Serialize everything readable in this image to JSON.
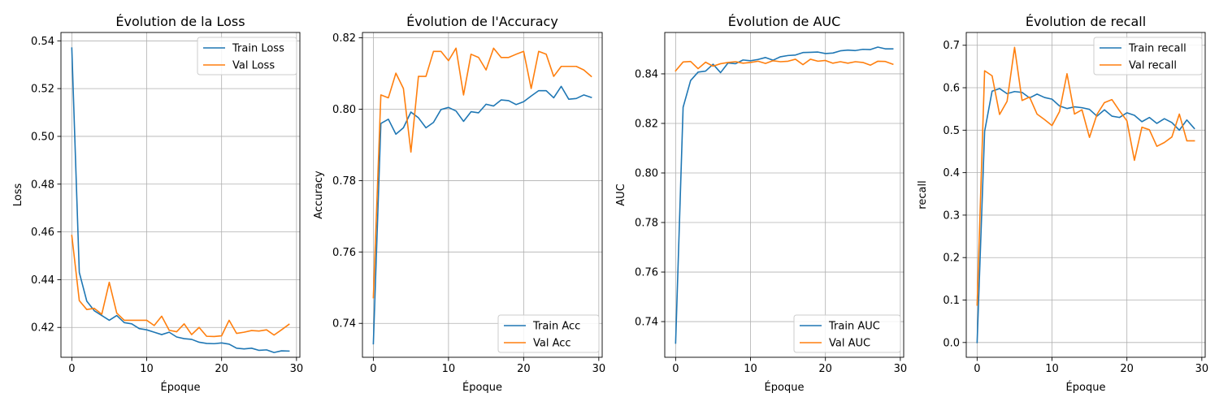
{
  "colors": {
    "train": "#1f77b4",
    "val": "#ff7f0e",
    "grid": "#b0b0b0"
  },
  "chart_data": [
    {
      "type": "line",
      "title": "Évolution de la Loss",
      "xlabel": "Époque",
      "ylabel": "Loss",
      "xlim": [
        -1.45,
        30.45
      ],
      "ylim": [
        0.4075,
        0.5435
      ],
      "xticks": [
        0,
        10,
        20,
        30
      ],
      "yticks": [
        0.42,
        0.44,
        0.46,
        0.48,
        0.5,
        0.52,
        0.54
      ],
      "ytick_labels": [
        "0.42",
        "0.44",
        "0.46",
        "0.48",
        "0.50",
        "0.52",
        "0.54"
      ],
      "grid": true,
      "legend": "upper right",
      "x": [
        0,
        1,
        2,
        3,
        4,
        5,
        6,
        7,
        8,
        9,
        10,
        11,
        12,
        13,
        14,
        15,
        16,
        17,
        18,
        19,
        20,
        21,
        22,
        23,
        24,
        25,
        26,
        27,
        28,
        29
      ],
      "series": [
        {
          "name": "Train Loss",
          "color": "train",
          "values": [
            0.537,
            0.443,
            0.431,
            0.427,
            0.425,
            0.423,
            0.425,
            0.422,
            0.4215,
            0.4195,
            0.419,
            0.418,
            0.417,
            0.418,
            0.416,
            0.4153,
            0.415,
            0.4138,
            0.4133,
            0.4132,
            0.4135,
            0.413,
            0.4113,
            0.411,
            0.4113,
            0.4104,
            0.4106,
            0.4095,
            0.4102,
            0.4101
          ]
        },
        {
          "name": "Val Loss",
          "color": "val",
          "values": [
            0.4585,
            0.4312,
            0.4275,
            0.428,
            0.4255,
            0.4389,
            0.426,
            0.423,
            0.423,
            0.423,
            0.423,
            0.4208,
            0.4247,
            0.4188,
            0.4182,
            0.4215,
            0.417,
            0.42,
            0.4163,
            0.4162,
            0.4165,
            0.423,
            0.4175,
            0.418,
            0.4187,
            0.4185,
            0.419,
            0.4168,
            0.419,
            0.4213
          ]
        }
      ]
    },
    {
      "type": "line",
      "title": "Évolution de l'Accuracy",
      "xlabel": "Époque",
      "ylabel": "Accuracy",
      "xlim": [
        -1.45,
        30.45
      ],
      "ylim": [
        0.7305,
        0.8215
      ],
      "xticks": [
        0,
        10,
        20,
        30
      ],
      "yticks": [
        0.74,
        0.76,
        0.78,
        0.8,
        0.82
      ],
      "ytick_labels": [
        "0.74",
        "0.76",
        "0.78",
        "0.80",
        "0.82"
      ],
      "grid": true,
      "legend": "lower right",
      "x": [
        0,
        1,
        2,
        3,
        4,
        5,
        6,
        7,
        8,
        9,
        10,
        11,
        12,
        13,
        14,
        15,
        16,
        17,
        18,
        19,
        20,
        21,
        22,
        23,
        24,
        25,
        26,
        27,
        28,
        29
      ],
      "series": [
        {
          "name": "Train Acc",
          "color": "train",
          "values": [
            0.7343,
            0.796,
            0.7972,
            0.793,
            0.7948,
            0.7992,
            0.7976,
            0.7948,
            0.7963,
            0.7999,
            0.8005,
            0.7995,
            0.7966,
            0.7993,
            0.799,
            0.8014,
            0.8009,
            0.8026,
            0.8024,
            0.8013,
            0.8021,
            0.8037,
            0.8052,
            0.8052,
            0.8032,
            0.8064,
            0.8028,
            0.803,
            0.804,
            0.8033
          ]
        },
        {
          "name": "Val Acc",
          "color": "val",
          "values": [
            0.7472,
            0.804,
            0.8032,
            0.8101,
            0.8058,
            0.788,
            0.8092,
            0.8092,
            0.8162,
            0.8162,
            0.8136,
            0.8171,
            0.804,
            0.8154,
            0.8145,
            0.811,
            0.8171,
            0.8145,
            0.8145,
            0.8154,
            0.8162,
            0.8058,
            0.8162,
            0.8154,
            0.8092,
            0.812,
            0.812,
            0.812,
            0.811,
            0.8092
          ]
        }
      ]
    },
    {
      "type": "line",
      "title": "Évolution de AUC",
      "xlabel": "Époque",
      "ylabel": "AUC",
      "xlim": [
        -1.45,
        30.45
      ],
      "ylim": [
        0.7256,
        0.8567
      ],
      "xticks": [
        0,
        10,
        20,
        30
      ],
      "yticks": [
        0.74,
        0.76,
        0.78,
        0.8,
        0.82,
        0.84
      ],
      "ytick_labels": [
        "0.74",
        "0.76",
        "0.78",
        "0.80",
        "0.82",
        "0.84"
      ],
      "grid": true,
      "legend": "lower right",
      "x": [
        0,
        1,
        2,
        3,
        4,
        5,
        6,
        7,
        8,
        9,
        10,
        11,
        12,
        13,
        14,
        15,
        16,
        17,
        18,
        19,
        20,
        21,
        22,
        23,
        24,
        25,
        26,
        27,
        28,
        29
      ],
      "series": [
        {
          "name": "Train AUC",
          "color": "train",
          "values": [
            0.7313,
            0.8265,
            0.8373,
            0.8407,
            0.8411,
            0.8439,
            0.8405,
            0.8444,
            0.8441,
            0.8456,
            0.8453,
            0.8458,
            0.8466,
            0.8455,
            0.8469,
            0.8474,
            0.8476,
            0.8486,
            0.8487,
            0.8488,
            0.8482,
            0.8484,
            0.8493,
            0.8496,
            0.8494,
            0.8499,
            0.8498,
            0.8508,
            0.8501,
            0.8501
          ]
        },
        {
          "name": "Val AUC",
          "color": "val",
          "values": [
            0.8412,
            0.8448,
            0.845,
            0.8421,
            0.8447,
            0.8431,
            0.8441,
            0.8446,
            0.8449,
            0.8443,
            0.8446,
            0.8451,
            0.8442,
            0.8453,
            0.8449,
            0.8451,
            0.8459,
            0.8437,
            0.8459,
            0.8451,
            0.8454,
            0.8443,
            0.8449,
            0.8443,
            0.8449,
            0.8446,
            0.8435,
            0.8451,
            0.845,
            0.8439
          ]
        }
      ]
    },
    {
      "type": "line",
      "title": "Évolution de recall",
      "xlabel": "Époque",
      "ylabel": "recall",
      "xlim": [
        -1.45,
        30.45
      ],
      "ylim": [
        -0.0348,
        0.7301
      ],
      "xticks": [
        0,
        10,
        20,
        30
      ],
      "yticks": [
        0.0,
        0.1,
        0.2,
        0.3,
        0.4,
        0.5,
        0.6,
        0.7
      ],
      "ytick_labels": [
        "0.0",
        "0.1",
        "0.2",
        "0.3",
        "0.4",
        "0.5",
        "0.6",
        "0.7"
      ],
      "grid": true,
      "legend": "upper right",
      "x": [
        0,
        1,
        2,
        3,
        4,
        5,
        6,
        7,
        8,
        9,
        10,
        11,
        12,
        13,
        14,
        15,
        16,
        17,
        18,
        19,
        20,
        21,
        22,
        23,
        24,
        25,
        26,
        27,
        28,
        29
      ],
      "series": [
        {
          "name": "Train recall",
          "color": "train",
          "values": [
            0.0,
            0.497,
            0.592,
            0.598,
            0.586,
            0.591,
            0.589,
            0.576,
            0.585,
            0.577,
            0.573,
            0.557,
            0.551,
            0.555,
            0.553,
            0.549,
            0.533,
            0.548,
            0.533,
            0.53,
            0.541,
            0.535,
            0.52,
            0.53,
            0.516,
            0.527,
            0.518,
            0.5,
            0.524,
            0.504
          ]
        },
        {
          "name": "Val recall",
          "color": "val",
          "values": [
            0.088,
            0.64,
            0.628,
            0.537,
            0.568,
            0.695,
            0.57,
            0.578,
            0.538,
            0.525,
            0.511,
            0.544,
            0.633,
            0.538,
            0.548,
            0.483,
            0.537,
            0.565,
            0.572,
            0.546,
            0.522,
            0.429,
            0.507,
            0.501,
            0.462,
            0.471,
            0.484,
            0.538,
            0.475,
            0.475
          ]
        }
      ]
    }
  ]
}
